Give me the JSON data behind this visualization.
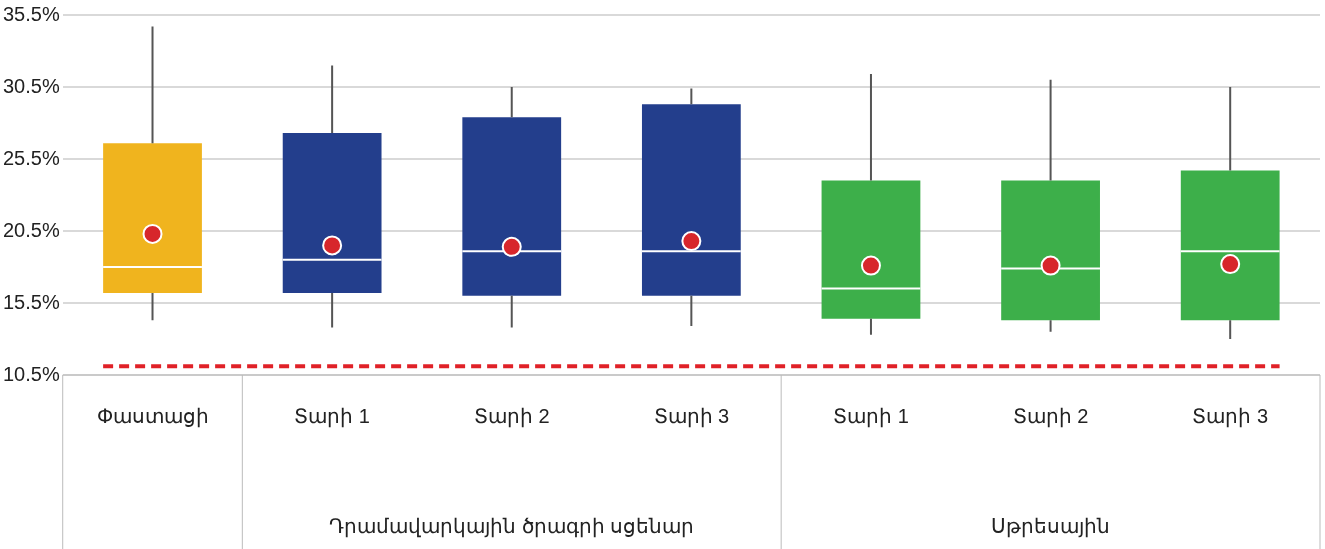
{
  "chart_data": {
    "type": "box",
    "categories": [
      "Փաստացի",
      "Տարի 1",
      "Տարի 2",
      "Տարի 3",
      "Տարի 1",
      "Տարի 2",
      "Տարի 3"
    ],
    "colors": [
      "#f0b41e",
      "#233e8c",
      "#233e8c",
      "#233e8c",
      "#3daf4a",
      "#3daf4a",
      "#3daf4a"
    ],
    "boxes": [
      {
        "low": 14.3,
        "q1": 16.2,
        "median": 18.0,
        "q3": 26.6,
        "high": 34.7,
        "mean": 20.3
      },
      {
        "low": 13.8,
        "q1": 16.2,
        "median": 18.5,
        "q3": 27.3,
        "high": 32.0,
        "mean": 19.5
      },
      {
        "low": 13.8,
        "q1": 16.0,
        "median": 19.1,
        "q3": 28.4,
        "high": 30.5,
        "mean": 19.4
      },
      {
        "low": 13.9,
        "q1": 16.0,
        "median": 19.1,
        "q3": 29.3,
        "high": 30.4,
        "mean": 19.8
      },
      {
        "low": 13.3,
        "q1": 14.4,
        "median": 16.5,
        "q3": 24.0,
        "high": 31.4,
        "mean": 18.1
      },
      {
        "low": 13.5,
        "q1": 14.3,
        "median": 17.9,
        "q3": 24.0,
        "high": 31.0,
        "mean": 18.1
      },
      {
        "low": 13.0,
        "q1": 14.3,
        "median": 19.1,
        "q3": 24.7,
        "high": 30.5,
        "mean": 18.2
      }
    ],
    "ylim": [
      10.5,
      35.5
    ],
    "yticks": [
      {
        "value": 10.5,
        "label": "10.5%"
      },
      {
        "value": 15.5,
        "label": "15.5%"
      },
      {
        "value": 20.5,
        "label": "20.5%"
      },
      {
        "value": 25.5,
        "label": "25.5%"
      },
      {
        "value": 30.5,
        "label": "30.5%"
      },
      {
        "value": 35.5,
        "label": "35.5%"
      }
    ],
    "grid": "y",
    "ref_lines": [
      {
        "axis": "y",
        "value": 11.1,
        "color": "#e02127",
        "line_style": "dashed"
      }
    ],
    "annotations": [
      "Դրամավարկային ծրագրի սցենար",
      "Սթրեսային"
    ]
  }
}
